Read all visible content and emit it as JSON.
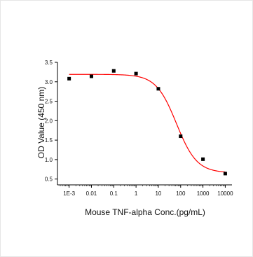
{
  "chart_data": {
    "type": "scatter",
    "title": "",
    "xlabel": "Mouse TNF-alpha Conc.(pg/mL)",
    "ylabel": "OD Value (450 nm)",
    "x_scale": "log",
    "xlim": [
      0.0003,
      20000
    ],
    "ylim": [
      0.35,
      3.5
    ],
    "x_ticks": [
      0.001,
      0.01,
      0.1,
      1,
      10,
      100,
      1000,
      10000
    ],
    "x_tick_labels": [
      "1E-3",
      "0.01",
      "0.1",
      "1",
      "10",
      "100",
      "1000",
      "10000"
    ],
    "y_ticks": [
      0.5,
      1.0,
      1.5,
      2.0,
      2.5,
      3.0,
      3.5
    ],
    "y_tick_labels": [
      "0.5",
      "1.0",
      "1.5",
      "2.0",
      "2.5",
      "3.0",
      "3.5"
    ],
    "grid": false,
    "legend": "none",
    "series": [
      {
        "kind": "points",
        "x": [
          0.001,
          0.01,
          0.1,
          1,
          10,
          100,
          1000,
          10000
        ],
        "y": [
          3.08,
          3.14,
          3.28,
          3.21,
          2.82,
          1.6,
          1.01,
          0.64
        ],
        "color": "#000000"
      },
      {
        "kind": "fit",
        "model": "4PL",
        "top": 3.19,
        "bottom": 0.66,
        "ec50": 65,
        "hill": 0.95,
        "color": "#ff0000"
      }
    ]
  }
}
